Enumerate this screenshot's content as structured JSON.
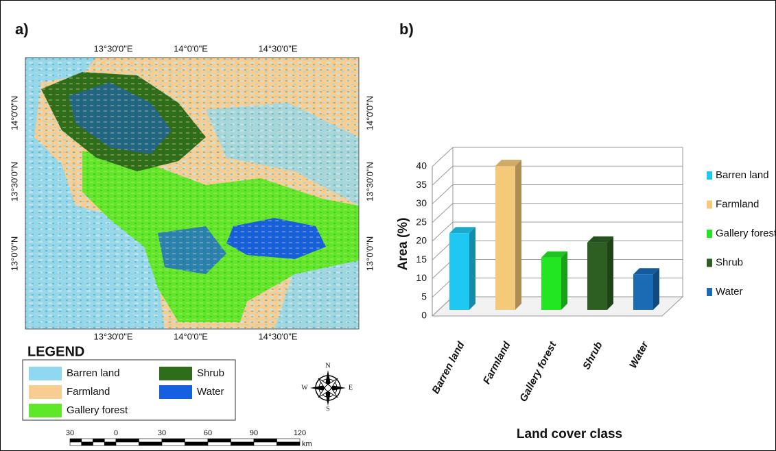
{
  "map": {
    "panel_label": "a)",
    "lon_labels": [
      "13°30'0\"E",
      "14°0'0\"E",
      "14°30'0\"E"
    ],
    "lat_labels": [
      "14°0'0\"N",
      "13°30'0\"N",
      "13°0'0\"N"
    ],
    "legend_title": "LEGEND",
    "legend": [
      {
        "name": "Barren land",
        "color": "#8fd8f0"
      },
      {
        "name": "Farmland",
        "color": "#f8cd92"
      },
      {
        "name": "Gallery forest",
        "color": "#5fe82a"
      },
      {
        "name": "Shrub",
        "color": "#2e6e1a"
      },
      {
        "name": "Water",
        "color": "#1560e0"
      }
    ],
    "compass": {
      "n": "N",
      "e": "E",
      "s": "S",
      "w": "W"
    },
    "scale_ticks": [
      30,
      0,
      30,
      60,
      90,
      120
    ],
    "scale_unit": "km"
  },
  "chart_data": {
    "type": "bar3d",
    "panel_label": "b)",
    "y_label": "Area (%)",
    "x_label": "Land cover class",
    "categories": [
      "Barren land",
      "Farmland",
      "Gallery forest",
      "Shrub",
      "Water"
    ],
    "values": [
      20.5,
      38.5,
      14,
      18,
      9.5
    ],
    "colors": [
      "#1ec8f0",
      "#f5c97a",
      "#22e622",
      "#2d5e22",
      "#1a6ab4"
    ],
    "ylim": [
      0,
      40
    ],
    "yticks": [
      0,
      5,
      10,
      15,
      20,
      25,
      30,
      35,
      40
    ],
    "grid": true
  }
}
